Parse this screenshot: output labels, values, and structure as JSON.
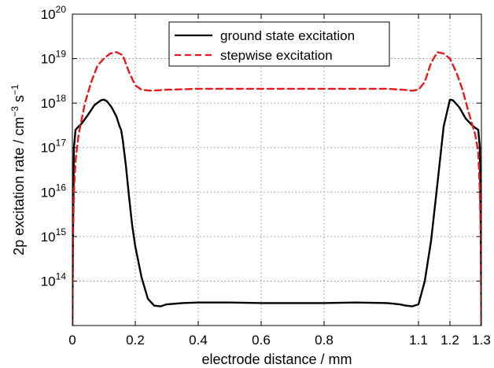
{
  "chart_data": {
    "type": "line",
    "xlabel": "electrode distance / mm",
    "ylabel": "2p excitation rate / cm",
    "ylabel_sup1": "−3",
    "ylabel_mid": " s",
    "ylabel_sup2": "−1",
    "xlim": [
      0,
      1.3
    ],
    "ylim": [
      10000000000000.0,
      1e+20
    ],
    "yscale": "log",
    "grid": true,
    "legend_position": "top-center",
    "x_ticks": [
      {
        "value": 0,
        "label": "0"
      },
      {
        "value": 0.2,
        "label": "0.2"
      },
      {
        "value": 0.4,
        "label": "0.4"
      },
      {
        "value": 0.6,
        "label": "0.6"
      },
      {
        "value": 0.8,
        "label": "0.8"
      },
      {
        "value": 1.1,
        "label": "1.1"
      },
      {
        "value": 1.2,
        "label": "1.2"
      },
      {
        "value": 1.3,
        "label": "1.3"
      }
    ],
    "y_ticks": [
      {
        "exp": 14,
        "base": "10",
        "sup": "14"
      },
      {
        "exp": 15,
        "base": "10",
        "sup": "15"
      },
      {
        "exp": 16,
        "base": "10",
        "sup": "16"
      },
      {
        "exp": 17,
        "base": "10",
        "sup": "17"
      },
      {
        "exp": 18,
        "base": "10",
        "sup": "18"
      },
      {
        "exp": 19,
        "base": "10",
        "sup": "19"
      },
      {
        "exp": 20,
        "base": "10",
        "sup": "20"
      }
    ],
    "series": [
      {
        "name": "ground state excitation",
        "color": "#000000",
        "style": "solid",
        "x": [
          0,
          0.002,
          0.005,
          0.01,
          0.02,
          0.03,
          0.05,
          0.07,
          0.09,
          0.1,
          0.11,
          0.125,
          0.14,
          0.15,
          0.155,
          0.16,
          0.17,
          0.18,
          0.19,
          0.2,
          0.22,
          0.24,
          0.26,
          0.28,
          0.3,
          0.35,
          0.4,
          0.5,
          0.6,
          0.7,
          0.8,
          0.9,
          1.0,
          1.02,
          1.04,
          1.06,
          1.08,
          1.1,
          1.12,
          1.14,
          1.16,
          1.18,
          1.2,
          1.21,
          1.23,
          1.25,
          1.27,
          1.28,
          1.29,
          1.295,
          1.298,
          1.3
        ],
        "y": [
          10000000000000.0,
          1000000000000000.0,
          1e+17,
          2.5e+17,
          3e+17,
          3.5e+17,
          5.5e+17,
          9e+17,
          1.15e+18,
          1.2e+18,
          1.1e+18,
          8e+17,
          5e+17,
          3e+17,
          2.5e+17,
          1.5e+17,
          4e+16,
          8000000000000000.0,
          1800000000000000.0,
          600000000000000.0,
          120000000000000.0,
          40000000000000.0,
          28000000000000.0,
          27000000000000.0,
          30000000000000.0,
          32000000000000.0,
          33000000000000.0,
          33000000000000.0,
          32000000000000.0,
          32000000000000.0,
          32000000000000.0,
          33000000000000.0,
          32000000000000.0,
          31000000000000.0,
          30000000000000.0,
          28000000000000.0,
          27000000000000.0,
          30000000000000.0,
          100000000000000.0,
          800000000000000.0,
          1.5e+16,
          3e+17,
          1.2e+18,
          1.15e+18,
          8e+17,
          4.5e+17,
          3.2e+17,
          2.8e+17,
          2.5e+17,
          1e+17,
          1000000000000000.0,
          10000000000000.0
        ]
      },
      {
        "name": "stepwise excitation",
        "color": "#e8181b",
        "style": "dashed",
        "x": [
          0,
          0.002,
          0.005,
          0.01,
          0.02,
          0.04,
          0.06,
          0.08,
          0.1,
          0.12,
          0.14,
          0.16,
          0.18,
          0.2,
          0.22,
          0.25,
          0.3,
          0.4,
          0.5,
          0.6,
          0.7,
          0.8,
          0.9,
          1.0,
          1.05,
          1.08,
          1.1,
          1.12,
          1.14,
          1.16,
          1.18,
          1.2,
          1.22,
          1.24,
          1.26,
          1.28,
          1.29,
          1.295,
          1.298,
          1.3
        ],
        "y": [
          10000000000000.0,
          1000000000000000.0,
          1e+16,
          5e+16,
          2e+17,
          1e+18,
          3e+18,
          7e+18,
          1e+19,
          1.3e+19,
          1.4e+19,
          1.2e+19,
          5e+18,
          2.5e+18,
          2e+18,
          1.9e+18,
          2e+18,
          2.1e+18,
          2.1e+18,
          2.1e+18,
          2.1e+18,
          2.1e+18,
          2.1e+18,
          2.1e+18,
          2e+18,
          1.9e+18,
          2e+18,
          3e+18,
          8e+18,
          1.4e+19,
          1.3e+19,
          1e+19,
          5e+18,
          2e+18,
          6e+17,
          2e+17,
          8e+16,
          1e+16,
          1000000000000000.0,
          10000000000000.0
        ]
      }
    ]
  }
}
